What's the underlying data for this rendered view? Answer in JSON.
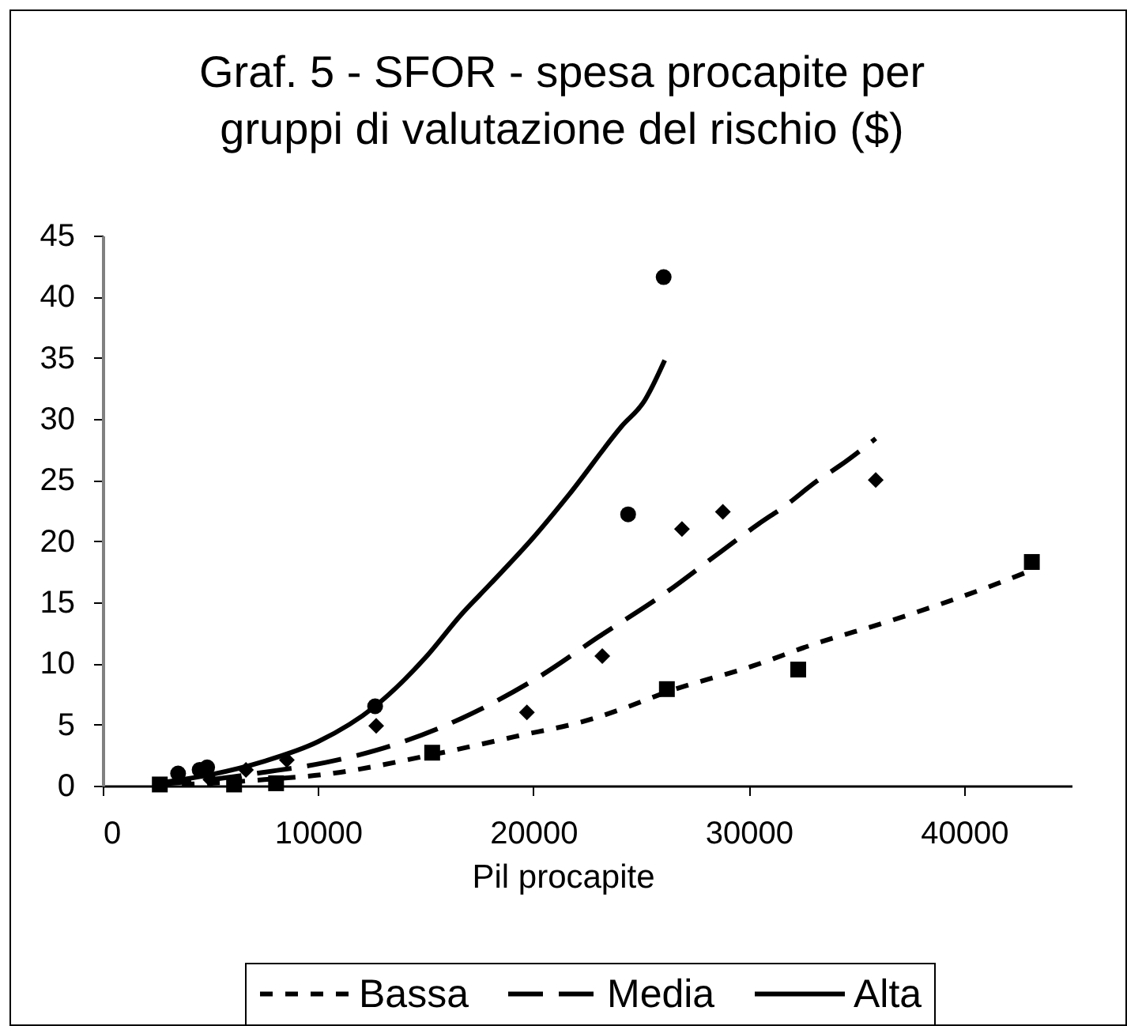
{
  "chart_data": {
    "type": "scatter",
    "title": "Graf. 5 - SFOR - spesa procapite per\ngruppi di valutazione del rischio ($)",
    "xlabel": "Pil procapite",
    "xlim": [
      0,
      45000
    ],
    "xticks": [
      0,
      10000,
      20000,
      30000,
      40000
    ],
    "ylim": [
      0,
      45
    ],
    "yticks": [
      0,
      5,
      10,
      15,
      20,
      25,
      30,
      35,
      40,
      45
    ],
    "legend": "bottom",
    "series": [
      {
        "marker": "square",
        "color": "#000000",
        "x": [
          2650,
          6100,
          8050,
          15300,
          26200,
          32300,
          43150
        ],
        "values": [
          0.1,
          0.1,
          0.2,
          2.7,
          7.9,
          9.5,
          18.3
        ]
      },
      {
        "marker": "diamond",
        "color": "#000000",
        "x": [
          5000,
          6650,
          8550,
          12700,
          19700,
          23200,
          26900,
          28800,
          35900
        ],
        "values": [
          0.5,
          1.3,
          2.1,
          4.9,
          6.0,
          10.6,
          21.0,
          22.4,
          25.0
        ]
      },
      {
        "marker": "circle",
        "color": "#000000",
        "x": [
          3500,
          4500,
          4850,
          12650,
          24400,
          26050
        ],
        "values": [
          1.0,
          1.3,
          1.5,
          6.5,
          22.2,
          41.6
        ]
      },
      {
        "type": "line",
        "name": "Bassa",
        "line_style": "dotted",
        "color": "#000000",
        "x": [
          2500,
          5000,
          7500,
          10200,
          15200,
          19100,
          22800,
          24300,
          26250,
          30200,
          32900,
          36600,
          41500,
          43100
        ],
        "values": [
          0.1,
          0.2,
          0.5,
          0.9,
          2.5,
          4.0,
          5.5,
          6.4,
          7.7,
          9.8,
          11.5,
          13.5,
          16.5,
          17.6
        ]
      },
      {
        "type": "line",
        "name": "Media",
        "line_style": "dashed",
        "color": "#000000",
        "x": [
          2500,
          5000,
          7500,
          10350,
          12700,
          16650,
          20350,
          23050,
          26000,
          28750,
          30450,
          31700,
          33150,
          34250,
          35900
        ],
        "values": [
          0.1,
          0.5,
          1.1,
          1.9,
          2.9,
          5.5,
          9.0,
          12.2,
          15.6,
          19.2,
          21.4,
          22.9,
          24.9,
          26.2,
          28.4
        ]
      },
      {
        "type": "line",
        "name": "Alta",
        "line_style": "solid",
        "color": "#000000",
        "x": [
          2500,
          5000,
          7500,
          10000,
          12650,
          15000,
          16650,
          18000,
          20000,
          21650,
          24100,
          25200,
          25450,
          26100
        ],
        "values": [
          0.2,
          0.9,
          2.0,
          3.6,
          6.5,
          10.5,
          14.0,
          16.5,
          20.3,
          23.8,
          29.4,
          31.6,
          32.4,
          34.8
        ]
      }
    ]
  }
}
